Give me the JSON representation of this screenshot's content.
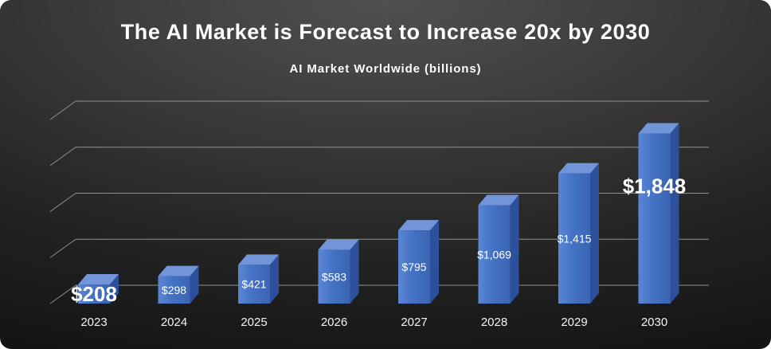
{
  "header": {
    "title": "The AI Market is Forecast to Increase 20x by 2030",
    "subtitle": "AI Market Worldwide (billions)"
  },
  "chart_data": {
    "type": "bar",
    "style_3d": true,
    "title": "The AI Market is Forecast to Increase 20x by 2030",
    "subtitle": "AI Market Worldwide (billions)",
    "categories": [
      "2023",
      "2024",
      "2025",
      "2026",
      "2027",
      "2028",
      "2029",
      "2030"
    ],
    "values": [
      208,
      298,
      421,
      583,
      795,
      1069,
      1415,
      1848
    ],
    "value_labels": [
      "$208",
      "$298",
      "$421",
      "$583",
      "$795",
      "$1,069",
      "$1,415",
      "$1,848"
    ],
    "emphasized_label_indices": [
      0,
      7
    ],
    "xlabel": "",
    "ylabel": "",
    "ylim": [
      0,
      2000
    ],
    "gridline_interval": 500,
    "grid": true,
    "legend": false,
    "colors": {
      "bar_front": "#4472C4",
      "bar_front_light": "#5C86D4",
      "bar_front_dark": "#3B65B2",
      "bar_top": "#7195D8",
      "bar_side": "#2D509C",
      "gridline": "#909090",
      "value_label": "#FFFFFF",
      "tick_label": "#F2F2F2",
      "title_color": "#FFFFFF",
      "background_top": "#3C3C3C",
      "background_bottom": "#0D0D0D"
    }
  }
}
